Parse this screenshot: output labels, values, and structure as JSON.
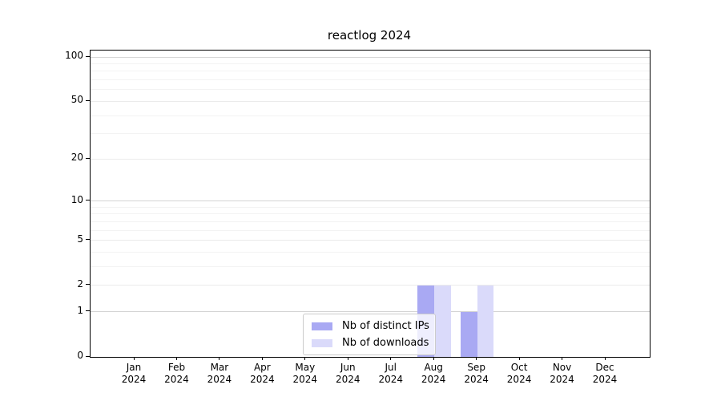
{
  "chart_data": {
    "type": "bar",
    "title": "reactlog 2024",
    "categories": [
      "Jan 2024",
      "Feb 2024",
      "Mar 2024",
      "Apr 2024",
      "May 2024",
      "Jun 2024",
      "Jul 2024",
      "Aug 2024",
      "Sep 2024",
      "Oct 2024",
      "Nov 2024",
      "Dec 2024"
    ],
    "series": [
      {
        "name": "Nb of distinct IPs",
        "color": "#a9a9f3",
        "values": [
          0,
          0,
          0,
          0,
          0,
          0,
          0,
          2,
          1,
          0,
          0,
          0
        ]
      },
      {
        "name": "Nb of downloads",
        "color": "#dadafa",
        "values": [
          0,
          0,
          0,
          0,
          0,
          0,
          0,
          2,
          2,
          0,
          0,
          0
        ]
      }
    ],
    "xlabel": "",
    "ylabel": "",
    "yscale": "log1p",
    "ylim": [
      0,
      111
    ],
    "yticks_labeled": [
      0,
      1,
      2,
      5,
      10,
      20,
      50,
      100
    ],
    "yticks_mid": [
      2,
      5,
      20,
      50
    ],
    "yticks_minor": [
      3,
      4,
      6,
      7,
      8,
      9,
      30,
      40,
      60,
      70,
      80,
      90
    ],
    "grid": "horizontal",
    "legend_position": "lower center inside"
  },
  "colors": {
    "grid_major": "#d4d4d4",
    "grid_mid": "#ebebeb",
    "grid_minor": "#f3f3f3",
    "spine": "#000000",
    "text": "#000000",
    "background": "#ffffff",
    "legend_border": "#cccccc"
  }
}
